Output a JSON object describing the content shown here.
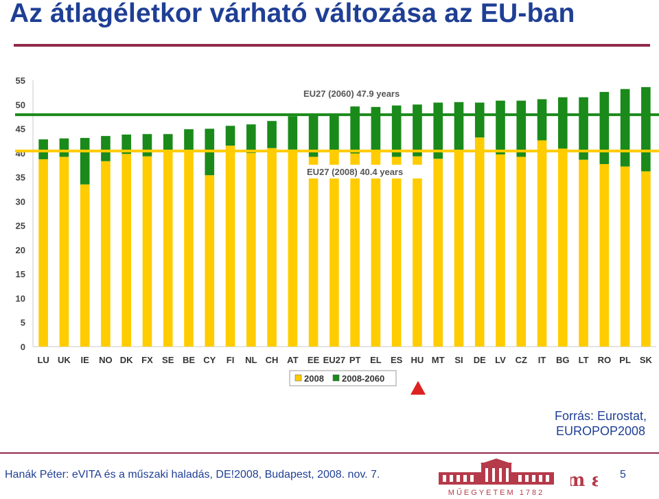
{
  "slide": {
    "title": "Az átlagéletkor várható változása az EU-ban",
    "source_line1": "Forrás: Eurostat,",
    "source_line2": "EUROPOP2008",
    "footer": "Hanák Péter: eVITA és a műszaki haladás, DE!2008, Budapest, 2008. nov. 7.",
    "page_number": "5",
    "logo_text": "MŰEGYETEM 1782",
    "monogram": "m ε"
  },
  "colors": {
    "title": "#1f3f95",
    "rule": "#8f2a4a",
    "base_bar": "#ffcc00",
    "change_bar": "#1a8a1a",
    "ref_line_2060": "#1a8a1a",
    "ref_line_2008": "#ffcc00",
    "marker": "#dd2222"
  },
  "chart_data": {
    "type": "bar",
    "stacked": true,
    "categories": [
      "LU",
      "UK",
      "IE",
      "NO",
      "DK",
      "FX",
      "SE",
      "BE",
      "CY",
      "FI",
      "NL",
      "CH",
      "AT",
      "EE",
      "EU27",
      "PT",
      "EL",
      "ES",
      "HU",
      "MT",
      "SI",
      "DE",
      "LV",
      "CZ",
      "IT",
      "BG",
      "LT",
      "RO",
      "PL",
      "SK"
    ],
    "series": [
      {
        "name": "2008",
        "values": [
          38.7,
          39.2,
          33.5,
          38.3,
          39.8,
          39.3,
          40.6,
          40.6,
          35.4,
          41.5,
          40.0,
          41.0,
          40.7,
          39.2,
          40.4,
          39.9,
          40.6,
          39.2,
          39.3,
          38.8,
          40.6,
          43.2,
          39.7,
          39.2,
          42.6,
          40.9,
          38.6,
          37.7,
          37.2,
          36.2
        ]
      },
      {
        "name": "2008-2060",
        "values": [
          4.1,
          3.8,
          9.6,
          5.2,
          4.0,
          4.6,
          3.3,
          4.3,
          9.6,
          4.1,
          5.9,
          5.6,
          6.9,
          8.9,
          7.5,
          9.7,
          8.9,
          10.6,
          10.7,
          11.6,
          9.9,
          7.2,
          11.1,
          11.6,
          8.5,
          10.6,
          12.9,
          14.9,
          16.0,
          17.4
        ]
      }
    ],
    "reference_lines": [
      {
        "label": "EU27 (2060) 47.9 years",
        "value": 47.9
      },
      {
        "label": "EU27 (2008) 40.4 years",
        "value": 40.4
      }
    ],
    "y_ticks": [
      0,
      5,
      10,
      15,
      20,
      25,
      30,
      35,
      40,
      45,
      50,
      55
    ],
    "ylim": [
      0,
      55
    ],
    "legend_position": "bottom-center",
    "grid": false
  }
}
